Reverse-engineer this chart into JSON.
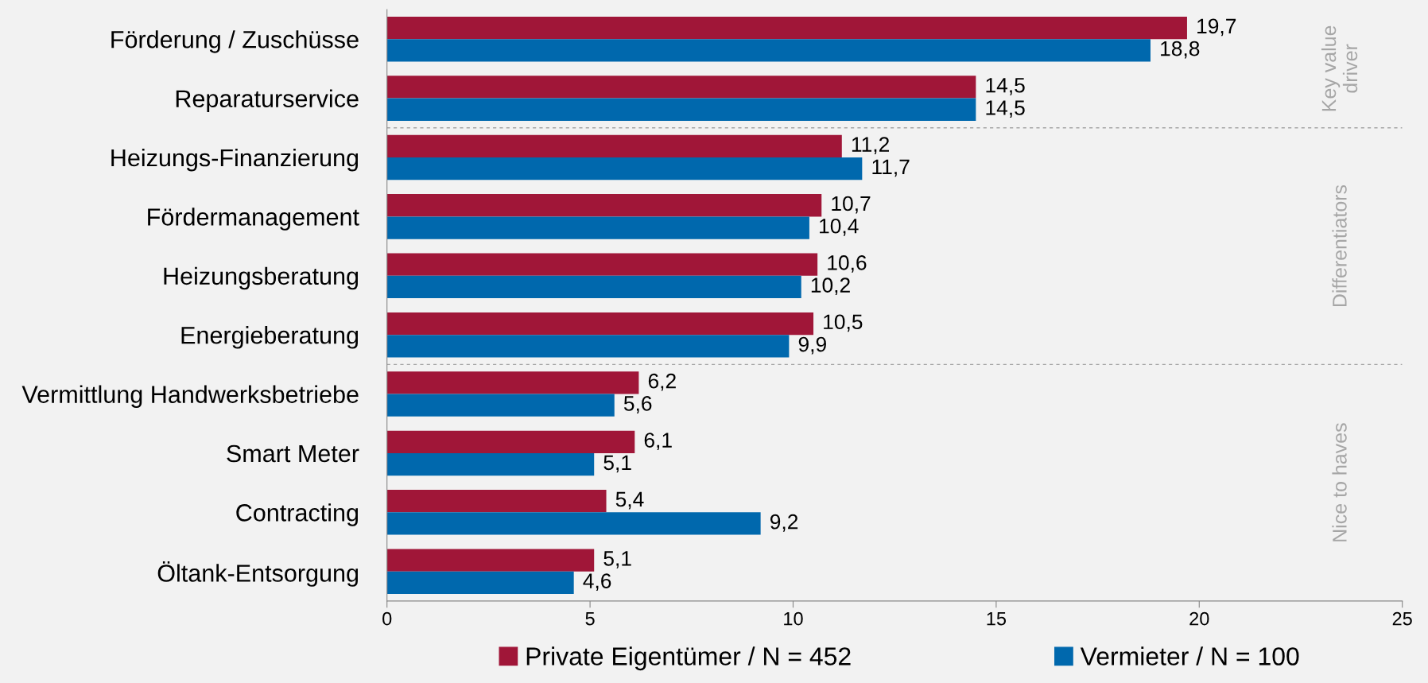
{
  "chart_data": {
    "type": "bar",
    "orientation": "horizontal",
    "categories": [
      "Förderung / Zuschüsse",
      "Reparaturservice",
      "Heizungs-Finanzierung",
      "Fördermanagement",
      "Heizungsberatung",
      "Energieberatung",
      "Vermittlung Handwerksbetriebe",
      "Smart Meter",
      "Contracting",
      "Öltank-Entsorgung"
    ],
    "series": [
      {
        "name": "Private Eigentümer / N = 452",
        "color": "#a01638",
        "values": [
          19.7,
          14.5,
          11.2,
          10.7,
          10.6,
          10.5,
          6.2,
          6.1,
          5.4,
          5.1
        ],
        "value_labels": [
          "19,7",
          "14,5",
          "11,2",
          "10,7",
          "10,6",
          "10,5",
          "6,2",
          "6,1",
          "5,4",
          "5,1"
        ]
      },
      {
        "name": "Vermieter / N = 100",
        "color": "#0068ad",
        "values": [
          18.8,
          14.5,
          11.7,
          10.4,
          10.2,
          9.9,
          5.6,
          5.1,
          9.2,
          4.6
        ],
        "value_labels": [
          "18,8",
          "14,5",
          "11,7",
          "10,4",
          "10,2",
          "9,9",
          "5,6",
          "5,1",
          "9,2",
          "4,6"
        ]
      }
    ],
    "xlim": [
      0,
      25
    ],
    "xticks": [
      0,
      5,
      10,
      15,
      20,
      25
    ],
    "annotations": [
      "Key value driver",
      "Differentiators",
      "Nice to haves"
    ],
    "grid": false,
    "legend": "bottom"
  }
}
